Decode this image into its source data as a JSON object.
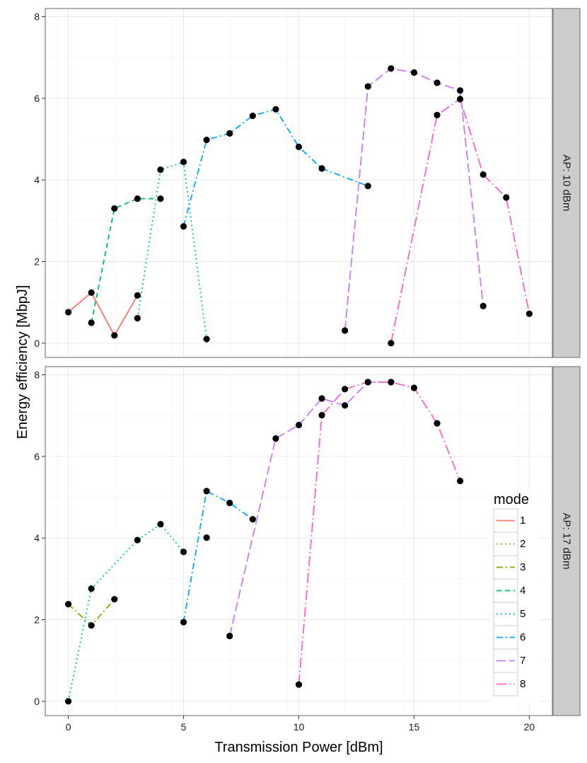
{
  "chart_data": {
    "type": "line",
    "xlabel": "Transmission Power [dBm]",
    "ylabel": "Energy efficiency [MbpJ]",
    "xlim": [
      -1,
      21
    ],
    "ylim": [
      -0.35,
      8.2
    ],
    "x_ticks": [
      0,
      5,
      10,
      15,
      20
    ],
    "y_ticks": [
      0,
      2,
      4,
      6,
      8
    ],
    "grid": true,
    "legend": {
      "title": "mode",
      "position": "right-bottom"
    },
    "mode_styles": {
      "1": {
        "color": "#F8766D",
        "dash": "solid"
      },
      "2": {
        "color": "#CD9600",
        "dash": "dotted"
      },
      "3": {
        "color": "#7CAE00",
        "dash": "dashdot"
      },
      "4": {
        "color": "#00BE67",
        "dash": "dashed"
      },
      "5": {
        "color": "#00BFC4",
        "dash": "dotted"
      },
      "6": {
        "color": "#00A9FF",
        "dash": "dashdot"
      },
      "7": {
        "color": "#C77CFF",
        "dash": "longdash"
      },
      "8": {
        "color": "#FF61CC",
        "dash": "dashdotlong"
      }
    },
    "facets": [
      {
        "label": "AP: 10 dBm",
        "series": [
          {
            "name": "1",
            "x": [
              0,
              1,
              2,
              3
            ],
            "y": [
              0.76,
              1.24,
              0.19,
              1.17
            ]
          },
          {
            "name": "4",
            "x": [
              1,
              2,
              3,
              4
            ],
            "y": [
              0.5,
              3.3,
              3.54,
              3.54
            ]
          },
          {
            "name": "5",
            "x": [
              3,
              4,
              5,
              6
            ],
            "y": [
              0.61,
              4.25,
              4.44,
              0.1
            ]
          },
          {
            "name": "6",
            "x": [
              5,
              6,
              7,
              8,
              9,
              10,
              11,
              13
            ],
            "y": [
              2.86,
              4.98,
              5.14,
              5.57,
              5.73,
              4.81,
              4.28,
              3.85
            ]
          },
          {
            "name": "7",
            "x": [
              12,
              13,
              14,
              15,
              16,
              17,
              18
            ],
            "y": [
              0.31,
              6.29,
              6.73,
              6.63,
              6.38,
              6.19,
              0.91
            ]
          },
          {
            "name": "8",
            "x": [
              14,
              16,
              17,
              18,
              19,
              20
            ],
            "y": [
              0.0,
              5.59,
              5.98,
              4.13,
              3.57,
              0.72
            ]
          }
        ]
      },
      {
        "label": "AP: 17 dBm",
        "series": [
          {
            "name": "3",
            "x": [
              0,
              1,
              2
            ],
            "y": [
              2.38,
              1.86,
              2.5
            ]
          },
          {
            "name": "5",
            "x": [
              0,
              1,
              3,
              4,
              5
            ],
            "y": [
              0.0,
              2.76,
              3.95,
              4.34,
              3.66
            ]
          },
          {
            "name": "6",
            "x": [
              5,
              6,
              7,
              8
            ],
            "y": [
              1.94,
              5.15,
              4.86,
              4.46
            ]
          },
          {
            "name": "7",
            "x": [
              7,
              9,
              10,
              11,
              12,
              13,
              14
            ],
            "y": [
              1.6,
              6.44,
              6.77,
              7.42,
              7.25,
              7.82,
              7.82
            ]
          },
          {
            "name": "8",
            "x": [
              10,
              11,
              12,
              13,
              14,
              15,
              16,
              17
            ],
            "y": [
              0.41,
              7.01,
              7.65,
              7.82,
              7.82,
              7.68,
              6.81,
              5.4
            ]
          }
        ],
        "extra_points": [
          {
            "x": 6,
            "y": 4.01
          }
        ]
      }
    ]
  }
}
